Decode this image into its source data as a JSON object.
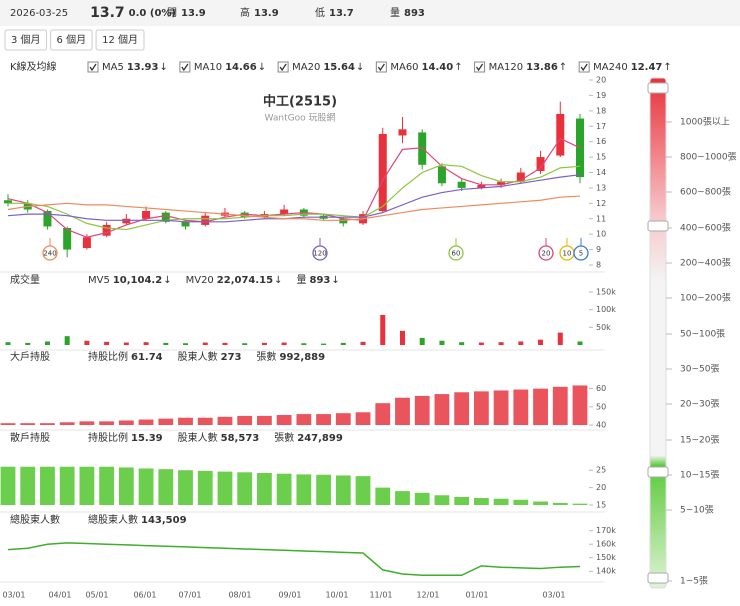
{
  "header": {
    "date": "2026-03-25",
    "price": "13.7",
    "change": "0.0 (0%)",
    "items": [
      {
        "label": "開",
        "value": "13.9"
      },
      {
        "label": "高",
        "value": "13.9"
      },
      {
        "label": "低",
        "value": "13.7"
      },
      {
        "label": "量",
        "value": "893"
      }
    ]
  },
  "ranges": [
    "3 個月",
    "6 個月",
    "12 個月"
  ],
  "depth_scale": [
    "1000張以上",
    "800~1000張",
    "600~800張",
    "400~600張",
    "200~400張",
    "100~200張",
    "50~100張",
    "30~50張",
    "20~30張",
    "15~20張",
    "10~15張",
    "5~10張",
    "1~5張"
  ],
  "chart_data": [
    {
      "type": "candlestick",
      "title": "中工(2515)",
      "subtitle": "WantGoo 玩股網",
      "label": "K線及均線",
      "up_color": "#e8313a",
      "down_color": "#2aa52a",
      "open": [
        12.2,
        12.0,
        11.5,
        10.4,
        9.1,
        9.9,
        10.7,
        11.0,
        11.4,
        10.8,
        10.6,
        11.2,
        11.4,
        11.1,
        11.3,
        11.6,
        11.2,
        11.0,
        10.7,
        11.5,
        16.4,
        16.6,
        14.4,
        13.4,
        13.0,
        13.2,
        13.4,
        14.1,
        15.1,
        17.5
      ],
      "high": [
        12.6,
        12.2,
        11.6,
        10.5,
        10.0,
        10.8,
        11.3,
        11.8,
        11.5,
        10.9,
        11.4,
        11.7,
        11.5,
        11.5,
        11.9,
        11.7,
        11.3,
        11.1,
        11.5,
        16.9,
        17.6,
        16.8,
        14.6,
        13.6,
        13.4,
        13.6,
        14.3,
        15.4,
        18.6,
        17.8
      ],
      "low": [
        11.8,
        11.4,
        10.3,
        8.5,
        9.0,
        9.8,
        10.6,
        10.9,
        10.7,
        10.3,
        10.5,
        11.1,
        11.0,
        11.0,
        11.2,
        11.1,
        10.9,
        10.5,
        10.6,
        11.4,
        15.9,
        14.2,
        13.1,
        12.8,
        12.9,
        13.0,
        13.3,
        13.9,
        15.0,
        13.3
      ],
      "close": [
        12.0,
        11.6,
        10.5,
        9.0,
        9.8,
        10.6,
        11.0,
        11.5,
        10.8,
        10.5,
        11.2,
        11.4,
        11.1,
        11.3,
        11.6,
        11.2,
        11.0,
        10.7,
        11.3,
        16.5,
        16.8,
        14.5,
        13.3,
        13.0,
        13.2,
        13.4,
        14.0,
        15.0,
        17.8,
        13.7
      ],
      "series": [
        {
          "name": "MA5",
          "last": "13.93",
          "arrow": "↓",
          "color": "#3a7bd5"
        },
        {
          "name": "MA10",
          "last": "14.66",
          "arrow": "↓",
          "color": "#e6b800"
        },
        {
          "name": "MA20",
          "last": "15.64",
          "arrow": "↓",
          "color": "#e0457b",
          "values": [
            12.3,
            12.0,
            11.4,
            10.3,
            9.8,
            10.1,
            10.6,
            11.0,
            11.2,
            10.9,
            10.8,
            11.1,
            11.3,
            11.2,
            11.3,
            11.4,
            11.3,
            11.0,
            10.9,
            13.5,
            15.5,
            15.6,
            14.4,
            13.6,
            13.2,
            13.2,
            13.5,
            14.3,
            16.2,
            15.6
          ]
        },
        {
          "name": "MA60",
          "last": "14.40",
          "arrow": "↑",
          "color": "#8cc63f",
          "values": [
            12.0,
            12.0,
            11.8,
            11.3,
            10.7,
            10.4,
            10.3,
            10.6,
            10.9,
            11.0,
            11.0,
            11.0,
            11.1,
            11.2,
            11.2,
            11.3,
            11.3,
            11.2,
            11.1,
            11.8,
            13.0,
            14.0,
            14.5,
            14.4,
            13.8,
            13.4,
            13.4,
            13.7,
            14.3,
            14.4
          ]
        },
        {
          "name": "MA120",
          "last": "13.86",
          "arrow": "↑",
          "color": "#7b5fc7",
          "values": [
            11.2,
            11.3,
            11.3,
            11.2,
            11.0,
            10.9,
            10.9,
            10.9,
            10.9,
            10.8,
            10.8,
            10.8,
            10.9,
            11.0,
            11.0,
            11.1,
            11.1,
            11.1,
            11.1,
            11.4,
            11.9,
            12.4,
            12.7,
            12.9,
            13.0,
            13.1,
            13.3,
            13.5,
            13.7,
            13.86
          ]
        },
        {
          "name": "MA240",
          "last": "12.47",
          "arrow": "↑",
          "color": "#f08a5d",
          "values": [
            11.6,
            11.8,
            11.9,
            12.0,
            11.9,
            11.9,
            11.8,
            11.7,
            11.6,
            11.5,
            11.4,
            11.3,
            11.2,
            11.1,
            11.0,
            11.0,
            10.9,
            10.9,
            11.0,
            11.2,
            11.4,
            11.6,
            11.7,
            11.8,
            11.9,
            12.0,
            12.1,
            12.2,
            12.4,
            12.47
          ]
        }
      ],
      "markers": [
        {
          "label": "240",
          "color": "#f08a5d"
        },
        {
          "label": "120",
          "color": "#7b5fc7"
        },
        {
          "label": "60",
          "color": "#8cc63f"
        },
        {
          "label": "20",
          "color": "#e0457b"
        },
        {
          "label": "10",
          "color": "#e6b800"
        },
        {
          "label": "5",
          "color": "#3a7bd5"
        }
      ],
      "ylim": [
        8,
        20
      ],
      "yticks": [
        8,
        9,
        10,
        11,
        12,
        13,
        14,
        15,
        16,
        17,
        18,
        19,
        20
      ]
    },
    {
      "type": "bar",
      "label": "成交量",
      "fields": [
        {
          "label": "MV5",
          "value": "10,104.2",
          "arrow": "↓",
          "color": "#3a7bd5"
        },
        {
          "label": "MV20",
          "value": "22,074.15",
          "arrow": "↓",
          "color": "#e0457b"
        },
        {
          "label": "量",
          "value": "893",
          "arrow": "↓",
          "color": "#333333"
        }
      ],
      "values": [
        8000,
        6000,
        10000,
        25000,
        12000,
        9000,
        7000,
        8000,
        6000,
        5000,
        7000,
        6000,
        5000,
        6000,
        7000,
        5000,
        4000,
        6000,
        9000,
        85000,
        40000,
        20000,
        12000,
        8000,
        7000,
        8000,
        10000,
        15000,
        35000,
        10000
      ],
      "ylim": [
        0,
        150000
      ],
      "yticks": [
        {
          "value": 50000,
          "label": "50k"
        },
        {
          "value": 100000,
          "label": "100k"
        },
        {
          "value": 150000,
          "label": "150k"
        }
      ]
    },
    {
      "type": "bar",
      "label": "大戶持股",
      "color": "#e8414a",
      "fields": [
        {
          "label": "持股比例",
          "value": "61.74",
          "color": "#e8313a"
        },
        {
          "label": "股東人數",
          "value": "273",
          "color": "#333333"
        },
        {
          "label": "張數",
          "value": "992,889",
          "color": "#333333"
        }
      ],
      "values": [
        41,
        41,
        41,
        41.5,
        42,
        42,
        42.5,
        43,
        43.5,
        44,
        44,
        44.5,
        45,
        45,
        45.5,
        46,
        46,
        46.5,
        47,
        52,
        55,
        56,
        57,
        58,
        58.5,
        59,
        59.5,
        60,
        61,
        61.74
      ],
      "ylim": [
        40,
        62
      ],
      "yticks": [
        40,
        50,
        60
      ]
    },
    {
      "type": "bar",
      "label": "散戶持股",
      "color": "#5cc93a",
      "fields": [
        {
          "label": "持股比例",
          "value": "15.39",
          "color": "#3fae2a"
        },
        {
          "label": "股東人數",
          "value": "58,573",
          "color": "#333333"
        },
        {
          "label": "張數",
          "value": "247,899",
          "color": "#333333"
        }
      ],
      "values": [
        26,
        26,
        26,
        26,
        26,
        26,
        25.8,
        25.5,
        25.3,
        25,
        24.8,
        24.6,
        24.4,
        24.2,
        24,
        23.8,
        23.7,
        23.5,
        23.3,
        20,
        19,
        18.5,
        17.8,
        17.3,
        17,
        16.8,
        16.5,
        16,
        15.6,
        15.39
      ],
      "ylim": [
        15,
        26.5
      ],
      "yticks": [
        15,
        20,
        25
      ]
    },
    {
      "type": "line",
      "label": "總股東人數",
      "color": "#3fae2a",
      "fields": [
        {
          "label": "總股東人數",
          "value": "143,509",
          "color": "#3fae2a"
        }
      ],
      "values": [
        156000,
        157000,
        160000,
        161000,
        160500,
        160000,
        159500,
        159000,
        158500,
        158000,
        157500,
        157000,
        156500,
        156000,
        155500,
        155000,
        154500,
        154000,
        153500,
        141000,
        138000,
        137000,
        137000,
        137000,
        144000,
        143000,
        142500,
        142000,
        143000,
        143509
      ],
      "ylim": [
        135000,
        172000
      ],
      "yticks": [
        {
          "value": 140000,
          "label": "140k"
        },
        {
          "value": 150000,
          "label": "150k"
        },
        {
          "value": 160000,
          "label": "160k"
        },
        {
          "value": 170000,
          "label": "170k"
        }
      ],
      "xtick_labels": [
        "03/01",
        "04/01",
        "05/01",
        "06/01",
        "07/01",
        "08/01",
        "09/01",
        "10/01",
        "11/01",
        "12/01",
        "01/01",
        "03/01"
      ]
    }
  ]
}
